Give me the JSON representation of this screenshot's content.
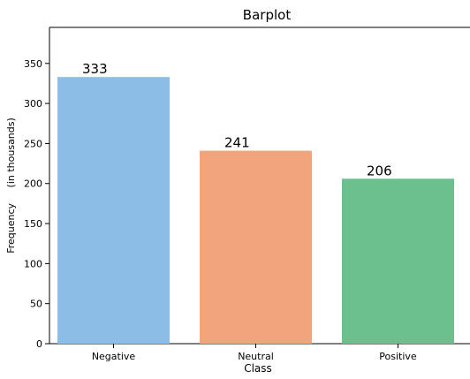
{
  "chart_data": {
    "type": "bar",
    "title": "Barplot",
    "xlabel": "Class",
    "ylabel": "Frequency",
    "ylabel_sub": "(in thousands)",
    "categories": [
      "Negative",
      "Neutral",
      "Positive"
    ],
    "values": [
      333,
      241,
      206
    ],
    "data_labels": [
      "333",
      "241",
      "206"
    ],
    "colors": [
      "#8bbde6",
      "#f2a57c",
      "#6cc08e"
    ],
    "ylim": [
      0,
      395
    ],
    "yticks": [
      0,
      50,
      100,
      150,
      200,
      250,
      300,
      350
    ],
    "grid": false,
    "legend": false
  }
}
